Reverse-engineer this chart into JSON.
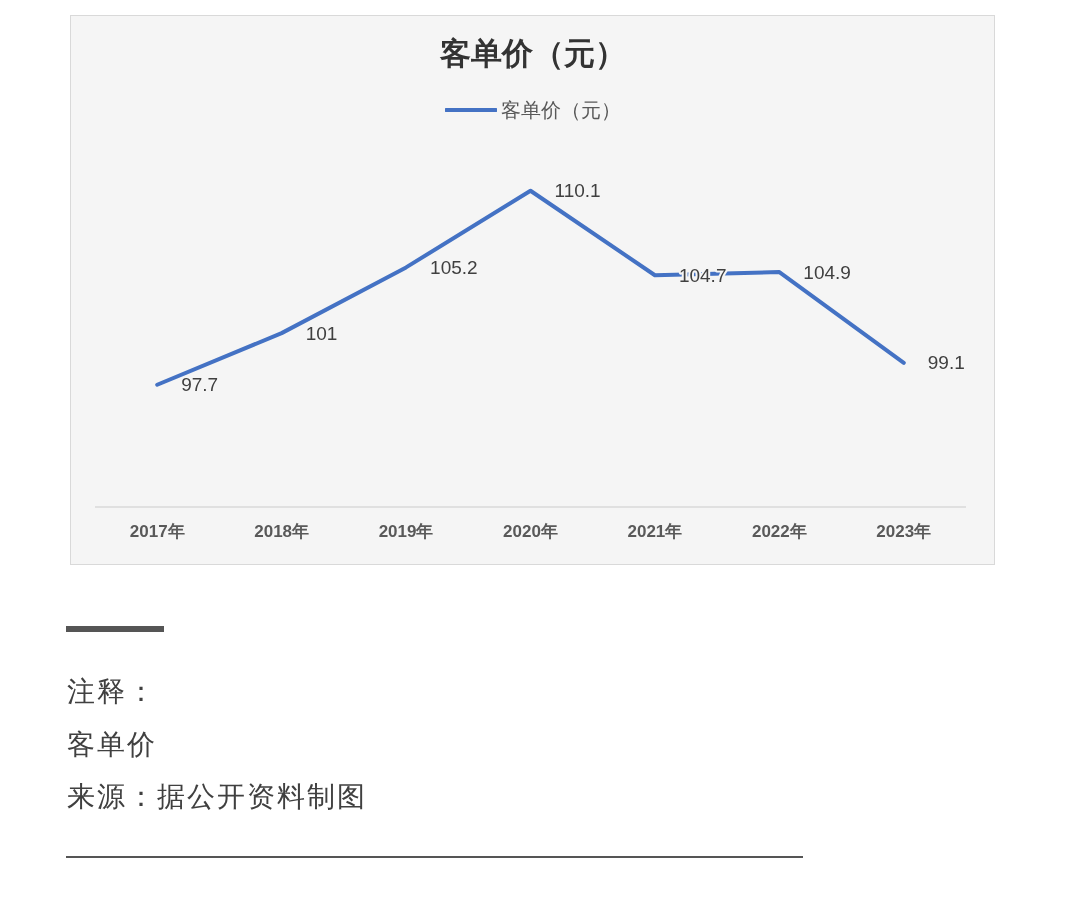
{
  "chart_data": {
    "type": "line",
    "title": "客单价（元）",
    "categories": [
      "2017年",
      "2018年",
      "2019年",
      "2020年",
      "2021年",
      "2022年",
      "2023年"
    ],
    "series": [
      {
        "name": "客单价（元）",
        "color": "#4472c4",
        "values": [
          97.7,
          101,
          105.2,
          110.1,
          104.7,
          104.9,
          99.1
        ]
      }
    ],
    "data_labels": true,
    "legend": "top",
    "grid": false,
    "tick_labels": "x",
    "marker": "none",
    "line_style": "solid",
    "annotations": [
      "注释：",
      "客单价",
      "来源：据公开资料制图"
    ]
  }
}
